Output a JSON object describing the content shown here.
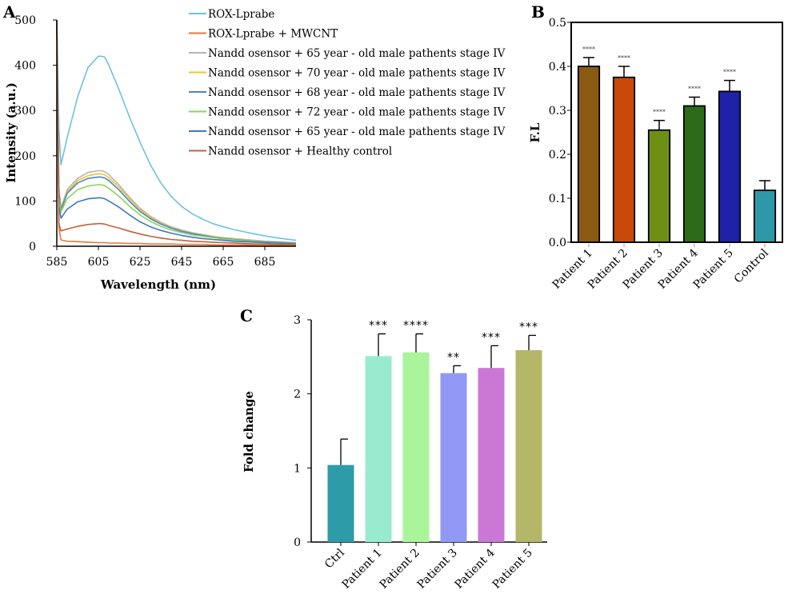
{
  "panels": {
    "a": "A",
    "b": "B",
    "c": "C"
  },
  "chart_data": [
    {
      "type": "line",
      "xlabel": "Wavelength (nm)",
      "ylabel": "Intensity (a.u.)",
      "xlim": [
        585,
        700
      ],
      "ylim": [
        0,
        500
      ],
      "x_ticks": [
        "585",
        "605",
        "625",
        "645",
        "665",
        "685"
      ],
      "y_ticks": [
        "0",
        "100",
        "200",
        "300",
        "400",
        "500"
      ],
      "legend_position": "top-right",
      "x": [
        585,
        586,
        587,
        590,
        595,
        600,
        605,
        606,
        608,
        610,
        615,
        620,
        625,
        630,
        635,
        640,
        645,
        650,
        655,
        660,
        665,
        670,
        675,
        680,
        685,
        690,
        695,
        700
      ],
      "series": [
        {
          "name": "ROX-Lprabe",
          "color": "#6ec1e4",
          "values": [
            500,
            260,
            180,
            240,
            330,
            395,
            420,
            420,
            418,
            400,
            345,
            285,
            230,
            180,
            140,
            110,
            88,
            72,
            60,
            50,
            43,
            37,
            32,
            27,
            23,
            19,
            16,
            13
          ]
        },
        {
          "name": "ROX-Lprabe + MWCNT",
          "color": "#e8773a",
          "values": [
            500,
            40,
            14,
            11,
            10,
            9,
            8,
            8,
            8,
            7,
            7,
            6,
            6,
            5,
            5,
            5,
            4,
            4,
            4,
            3,
            3,
            3,
            3,
            2,
            2,
            2,
            2,
            2
          ]
        },
        {
          "name": "Nandd osensor + 65 year - old male pathents stage IV",
          "color": "#b5b5b5",
          "values": [
            500,
            130,
            85,
            125,
            150,
            163,
            167,
            167,
            165,
            158,
            135,
            108,
            84,
            66,
            53,
            43,
            36,
            30,
            26,
            22,
            19,
            17,
            15,
            13,
            11,
            10,
            9,
            8
          ]
        },
        {
          "name": "Nandd osensor + 70 year - old male pathents stage IV",
          "color": "#f1c232",
          "values": [
            500,
            125,
            82,
            120,
            145,
            156,
            160,
            160,
            158,
            151,
            130,
            104,
            81,
            64,
            51,
            41,
            34,
            29,
            25,
            21,
            18,
            16,
            14,
            12,
            10,
            9,
            8,
            7
          ]
        },
        {
          "name": "Nandd osensor + 68 year - old male pathents stage IV",
          "color": "#4a86c8",
          "values": [
            500,
            120,
            80,
            117,
            140,
            150,
            153,
            153,
            151,
            145,
            124,
            99,
            77,
            61,
            49,
            40,
            33,
            28,
            24,
            20,
            17,
            15,
            13,
            11,
            10,
            9,
            8,
            7
          ]
        },
        {
          "name": "Nandd osensor + 72 year - old male pathents stage IV",
          "color": "#8cd45a",
          "values": [
            500,
            110,
            76,
            105,
            125,
            133,
            136,
            136,
            134,
            128,
            110,
            88,
            69,
            55,
            44,
            36,
            30,
            25,
            22,
            19,
            16,
            14,
            12,
            10,
            9,
            8,
            7,
            6
          ]
        },
        {
          "name": "Nandd osensor + 65 year - old male pathents stage IV",
          "color": "#3d78c2",
          "values": [
            500,
            90,
            62,
            82,
            98,
            105,
            107,
            107,
            105,
            100,
            86,
            69,
            54,
            43,
            35,
            29,
            24,
            20,
            17,
            15,
            13,
            11,
            10,
            9,
            8,
            7,
            6,
            5
          ]
        },
        {
          "name": "Nandd osensor + Healthy control",
          "color": "#c0623a",
          "values": [
            500,
            50,
            34,
            38,
            44,
            48,
            50,
            50,
            49,
            46,
            40,
            33,
            27,
            22,
            18,
            15,
            13,
            11,
            10,
            9,
            8,
            7,
            6,
            5,
            5,
            4,
            4,
            4
          ]
        }
      ]
    },
    {
      "type": "bar",
      "ylabel": "F.L",
      "ylim": [
        0,
        0.5
      ],
      "y_ticks": [
        "0.0",
        "0.1",
        "0.2",
        "0.3",
        "0.4",
        "0.5"
      ],
      "categories": [
        "Patient 1",
        "Patient 2",
        "Patient 3",
        "Patient 4",
        "Patient 5",
        "Control"
      ],
      "values": [
        0.4,
        0.375,
        0.255,
        0.31,
        0.343,
        0.118
      ],
      "errors": [
        0.02,
        0.025,
        0.022,
        0.02,
        0.025,
        0.022
      ],
      "colors": [
        "#8b5a12",
        "#c94a08",
        "#6f8f14",
        "#2e6b18",
        "#1e22a8",
        "#2e98a8"
      ],
      "significance": [
        "****",
        "****",
        "****",
        "****",
        "****",
        ""
      ]
    },
    {
      "type": "bar",
      "ylabel": "Fold change",
      "ylim": [
        0,
        3
      ],
      "y_ticks": [
        "0",
        "1",
        "2",
        "3"
      ],
      "categories": [
        "Ctrl",
        "Patient 1",
        "Patient 2",
        "Patient 3",
        "Patient 4",
        "Patient 5"
      ],
      "values": [
        1.04,
        2.51,
        2.56,
        2.28,
        2.35,
        2.59
      ],
      "errors": [
        0.35,
        0.3,
        0.25,
        0.1,
        0.3,
        0.2
      ],
      "colors": [
        "#2e9ba8",
        "#99ebd0",
        "#aaf59a",
        "#9199f4",
        "#cb77d6",
        "#b4b768"
      ],
      "significance": [
        "",
        "***",
        "****",
        "**",
        "***",
        "***"
      ]
    }
  ]
}
